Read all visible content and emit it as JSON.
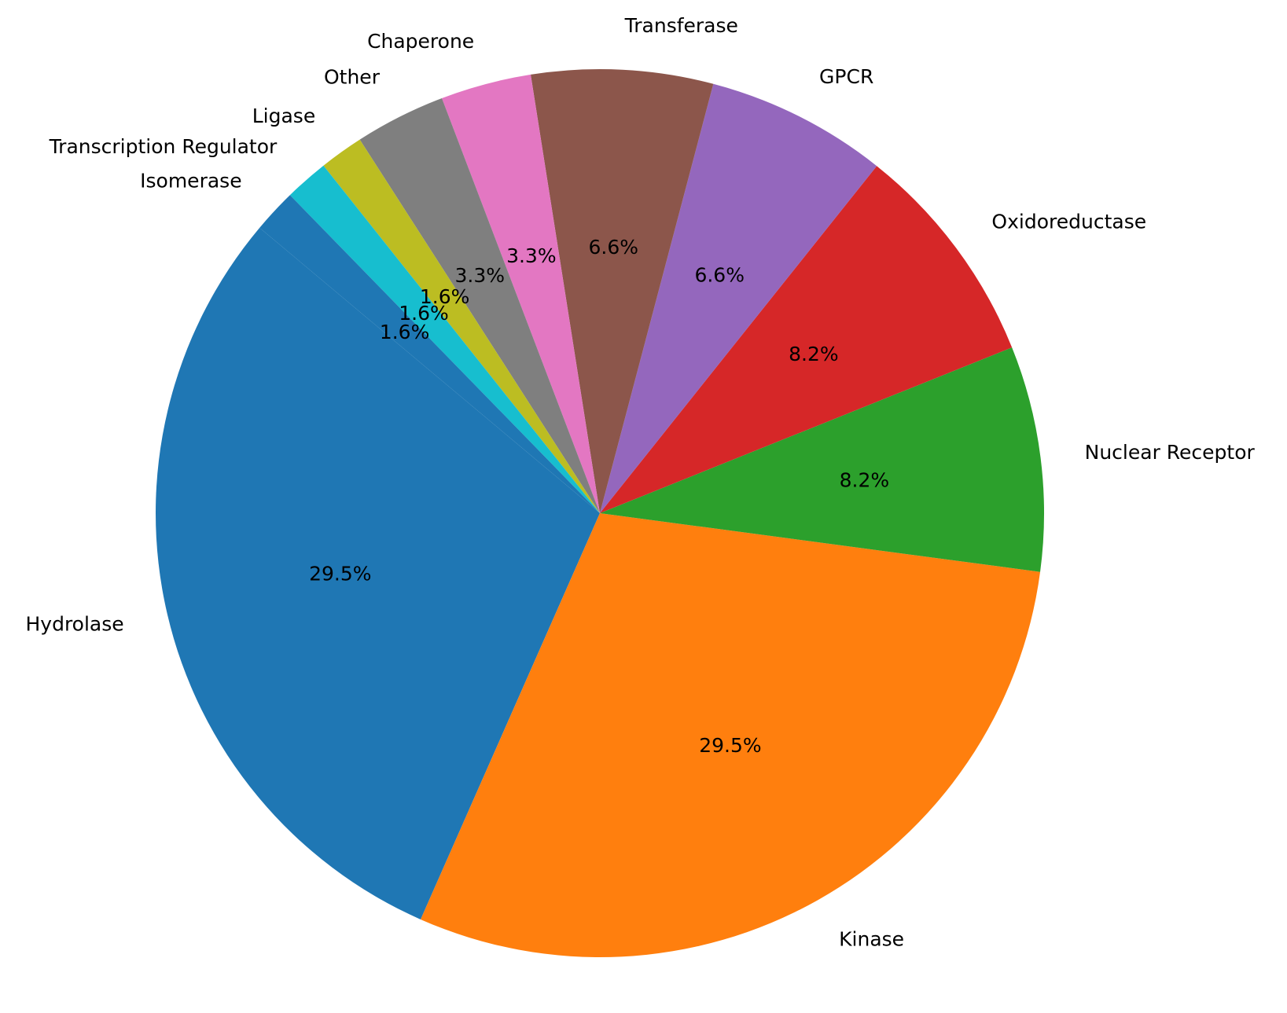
{
  "chart_data": {
    "type": "pie",
    "title": "",
    "categories": [
      "Hydrolase",
      "Kinase",
      "Nuclear Receptor",
      "Oxidoreductase",
      "GPCR",
      "Transferase",
      "Chaperone",
      "Other",
      "Ligase",
      "Transcription Regulator",
      "Isomerase"
    ],
    "values": [
      29.5,
      29.5,
      8.2,
      8.2,
      6.6,
      6.6,
      3.3,
      3.3,
      1.6,
      1.6,
      1.6
    ],
    "value_labels": [
      "29.5%",
      "29.5%",
      "8.2%",
      "8.2%",
      "6.6%",
      "6.6%",
      "3.3%",
      "3.3%",
      "1.6%",
      "1.6%",
      "1.6%"
    ],
    "colors": [
      "#1f77b4",
      "#ff7f0e",
      "#2ca02c",
      "#d62728",
      "#9467bd",
      "#8c564b",
      "#e377c2",
      "#7f7f7f",
      "#bcbd22",
      "#17becf",
      "#1f77b4"
    ],
    "start_angle_deg": 140,
    "direction": "counterclockwise",
    "legend": "none"
  }
}
